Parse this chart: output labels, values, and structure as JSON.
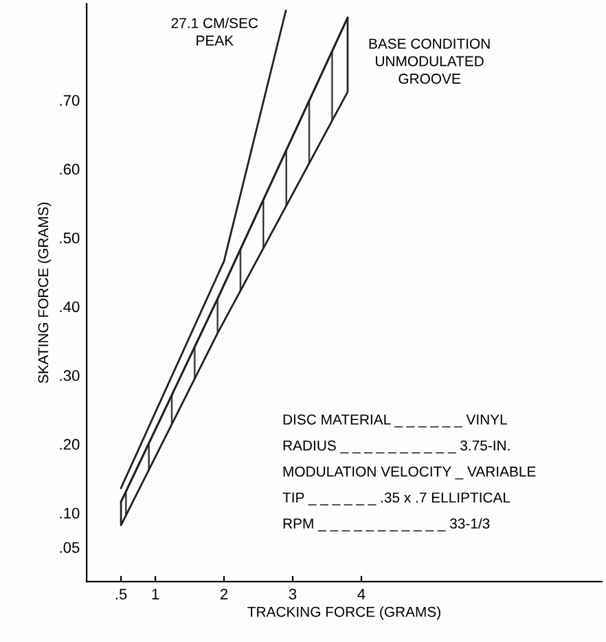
{
  "chart_data": {
    "type": "line",
    "xlabel": "TRACKING FORCE (GRAMS)",
    "ylabel": "SKATING FORCE (GRAMS)",
    "xlim": [
      0,
      7.5
    ],
    "ylim": [
      0,
      0.84
    ],
    "xticks": [
      {
        "value": 0.5,
        "label": ".5"
      },
      1,
      2,
      3,
      4
    ],
    "yticks": [
      {
        "value": 0.05,
        "label": ".05"
      },
      {
        "value": 0.1,
        "label": ".10"
      },
      {
        "value": 0.2,
        "label": ".20"
      },
      {
        "value": 0.3,
        "label": ".30"
      },
      {
        "value": 0.4,
        "label": ".40"
      },
      {
        "value": 0.5,
        "label": ".50"
      },
      {
        "value": 0.6,
        "label": ".60"
      },
      {
        "value": 0.7,
        "label": ".70"
      }
    ],
    "grid": false,
    "legend": false,
    "marker": "none",
    "line_style": "solid",
    "series": [
      {
        "name": "27.1 CM/SEC\nPEAK",
        "color": "#222222",
        "x": [
          0.5,
          2.0,
          2.9
        ],
        "values": [
          0.136,
          0.466,
          0.83
        ]
      },
      {
        "name": "BASE CONDITION\nUNMODULATED\nGROOVE",
        "color": "#222222",
        "x": [
          0.5,
          1.9,
          3.8
        ],
        "values": [
          0.116,
          0.41,
          0.82
        ],
        "lower": [
          0.082,
          0.36,
          0.712
        ],
        "upper": [
          0.116,
          0.41,
          0.82
        ]
      }
    ],
    "annotations": [
      "DISC MATERIAL _ _ _ _ _ _ VINYL",
      "RADIUS _ _ _ _ _ _ _ _ _ _ 3.75-IN.",
      "MODULATION VELOCITY _ VARIABLE",
      "TIP _ _ _ _ _ _ .35 x .7 ELLIPTICAL",
      "RPM _ _ _ _ _ _ _ _ _ _ _ 33-1/3"
    ]
  }
}
